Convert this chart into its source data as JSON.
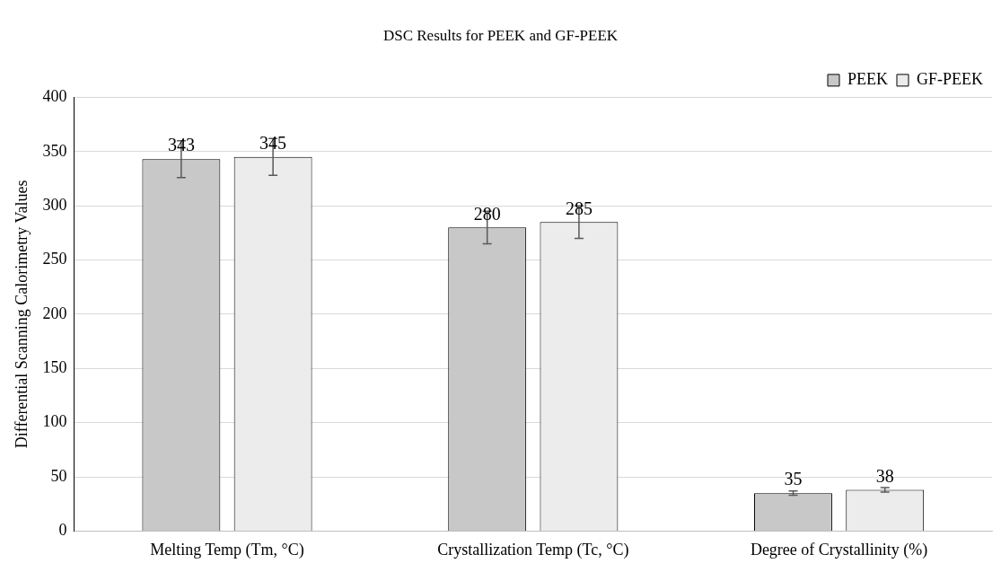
{
  "chart_data": {
    "type": "bar",
    "title": "DSC Results for PEEK and GF-PEEK",
    "ylabel": "Differential Scanning Calorimetry Values",
    "categories": [
      "Melting Temp (Tm, °C)",
      "Crystallization Temp (Tc, °C)",
      "Degree of Crystallinity (%)"
    ],
    "series": [
      {
        "name": "PEEK",
        "color": "#c8c8c8",
        "values": [
          343,
          280,
          35
        ],
        "errors": [
          17,
          15,
          2
        ]
      },
      {
        "name": "GF-PEEK",
        "color": "#ececec",
        "values": [
          345,
          285,
          38
        ],
        "errors": [
          17,
          15,
          2
        ]
      }
    ],
    "ylim": [
      0,
      400
    ],
    "yticks": [
      0,
      50,
      100,
      150,
      200,
      250,
      300,
      350,
      400
    ],
    "grid": "y",
    "legend": "top right",
    "data_labels": true
  }
}
